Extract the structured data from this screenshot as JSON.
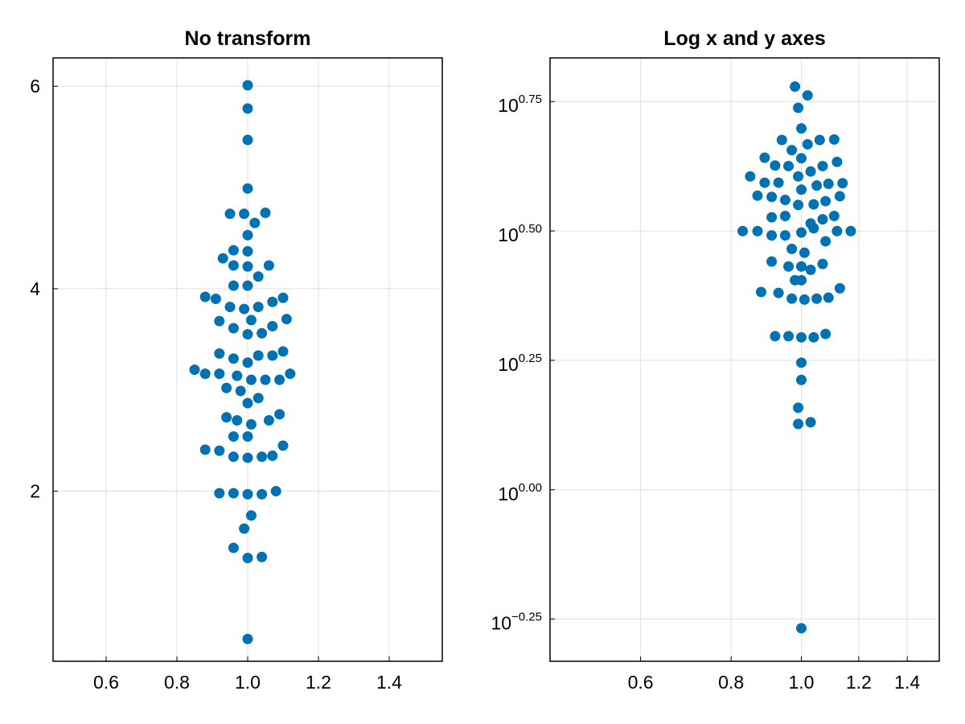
{
  "chart_data": [
    {
      "type": "scatter",
      "title": "No transform",
      "xlabel": "",
      "ylabel": "",
      "xlim": [
        0.45,
        1.55
      ],
      "ylim": [
        0.32,
        6.28
      ],
      "x_ticks": [
        "0.6",
        "0.8",
        "1.0",
        "1.2",
        "1.4"
      ],
      "y_ticks": [
        "2",
        "4",
        "6"
      ],
      "grid": true,
      "color": "#0072b2",
      "points": [
        [
          1.0,
          6.01
        ],
        [
          1.0,
          5.78
        ],
        [
          1.0,
          5.47
        ],
        [
          1.0,
          4.99
        ],
        [
          0.95,
          4.74
        ],
        [
          0.99,
          4.74
        ],
        [
          1.05,
          4.75
        ],
        [
          1.02,
          4.65
        ],
        [
          1.0,
          4.53
        ],
        [
          0.96,
          4.38
        ],
        [
          1.0,
          4.37
        ],
        [
          0.93,
          4.3
        ],
        [
          0.96,
          4.23
        ],
        [
          1.0,
          4.22
        ],
        [
          1.06,
          4.23
        ],
        [
          1.03,
          4.12
        ],
        [
          0.96,
          4.03
        ],
        [
          1.0,
          4.03
        ],
        [
          0.88,
          3.92
        ],
        [
          0.91,
          3.9
        ],
        [
          1.1,
          3.91
        ],
        [
          1.07,
          3.87
        ],
        [
          0.95,
          3.82
        ],
        [
          1.03,
          3.82
        ],
        [
          0.99,
          3.8
        ],
        [
          0.92,
          3.68
        ],
        [
          1.01,
          3.69
        ],
        [
          1.11,
          3.7
        ],
        [
          1.07,
          3.63
        ],
        [
          0.96,
          3.61
        ],
        [
          1.04,
          3.56
        ],
        [
          1.0,
          3.55
        ],
        [
          0.92,
          3.36
        ],
        [
          1.1,
          3.38
        ],
        [
          0.96,
          3.31
        ],
        [
          1.03,
          3.34
        ],
        [
          1.07,
          3.34
        ],
        [
          1.0,
          3.27
        ],
        [
          0.85,
          3.2
        ],
        [
          0.88,
          3.16
        ],
        [
          0.92,
          3.16
        ],
        [
          0.97,
          3.14
        ],
        [
          1.12,
          3.16
        ],
        [
          1.01,
          3.1
        ],
        [
          1.05,
          3.1
        ],
        [
          1.09,
          3.1
        ],
        [
          0.94,
          3.02
        ],
        [
          0.98,
          2.99
        ],
        [
          1.03,
          2.92
        ],
        [
          1.0,
          2.87
        ],
        [
          0.94,
          2.73
        ],
        [
          1.09,
          2.76
        ],
        [
          0.97,
          2.7
        ],
        [
          1.06,
          2.7
        ],
        [
          1.01,
          2.66
        ],
        [
          0.96,
          2.54
        ],
        [
          1.0,
          2.54
        ],
        [
          0.88,
          2.41
        ],
        [
          0.92,
          2.4
        ],
        [
          1.1,
          2.45
        ],
        [
          0.96,
          2.34
        ],
        [
          1.0,
          2.33
        ],
        [
          1.04,
          2.34
        ],
        [
          1.07,
          2.35
        ],
        [
          0.92,
          1.98
        ],
        [
          0.96,
          1.98
        ],
        [
          1.0,
          1.97
        ],
        [
          1.04,
          1.97
        ],
        [
          1.08,
          2.0
        ],
        [
          1.01,
          1.76
        ],
        [
          0.99,
          1.63
        ],
        [
          0.96,
          1.44
        ],
        [
          1.0,
          1.34
        ],
        [
          1.04,
          1.35
        ],
        [
          1.0,
          0.54
        ]
      ]
    },
    {
      "type": "scatter",
      "title": "Log x and y axes",
      "xlabel": "",
      "ylabel": "",
      "xscale": "log",
      "yscale": "log",
      "xlim": [
        0.45,
        1.55
      ],
      "ylim_log10": [
        -0.3314,
        0.8343
      ],
      "x_ticks": [
        "0.6",
        "0.8",
        "1.0",
        "1.2",
        "1.4"
      ],
      "y_ticks": [
        {
          "base": "10",
          "exp": "0.75"
        },
        {
          "base": "10",
          "exp": "0.50"
        },
        {
          "base": "10",
          "exp": "0.25"
        },
        {
          "base": "10",
          "exp": "0.00"
        },
        {
          "base": "10",
          "exp": "−0.25"
        }
      ],
      "grid": true,
      "color": "#0072b2",
      "points": [
        [
          0.98,
          6.01
        ],
        [
          1.02,
          5.78
        ],
        [
          0.99,
          5.47
        ],
        [
          1.0,
          4.99
        ],
        [
          0.94,
          4.74
        ],
        [
          0.97,
          4.53
        ],
        [
          1.02,
          4.65
        ],
        [
          1.06,
          4.74
        ],
        [
          1.11,
          4.75
        ],
        [
          1.0,
          4.37
        ],
        [
          0.89,
          4.38
        ],
        [
          0.92,
          4.23
        ],
        [
          0.96,
          4.22
        ],
        [
          1.03,
          4.12
        ],
        [
          1.07,
          4.22
        ],
        [
          1.12,
          4.3
        ],
        [
          0.85,
          4.03
        ],
        [
          0.89,
          3.92
        ],
        [
          0.93,
          3.92
        ],
        [
          0.99,
          4.03
        ],
        [
          1.05,
          3.87
        ],
        [
          1.09,
          3.9
        ],
        [
          1.14,
          3.91
        ],
        [
          0.87,
          3.7
        ],
        [
          0.91,
          3.68
        ],
        [
          0.95,
          3.63
        ],
        [
          1.0,
          3.8
        ],
        [
          1.04,
          3.56
        ],
        [
          1.08,
          3.61
        ],
        [
          1.13,
          3.69
        ],
        [
          0.91,
          3.36
        ],
        [
          0.95,
          3.38
        ],
        [
          0.99,
          3.55
        ],
        [
          1.03,
          3.27
        ],
        [
          1.07,
          3.33
        ],
        [
          1.11,
          3.38
        ],
        [
          0.83,
          3.16
        ],
        [
          0.87,
          3.16
        ],
        [
          0.91,
          3.1
        ],
        [
          0.95,
          3.1
        ],
        [
          1.0,
          3.14
        ],
        [
          1.04,
          3.2
        ],
        [
          1.12,
          3.16
        ],
        [
          1.17,
          3.16
        ],
        [
          0.97,
          2.92
        ],
        [
          1.01,
          2.87
        ],
        [
          1.08,
          3.02
        ],
        [
          0.91,
          2.76
        ],
        [
          0.96,
          2.7
        ],
        [
          1.0,
          2.7
        ],
        [
          1.03,
          2.66
        ],
        [
          1.07,
          2.73
        ],
        [
          0.98,
          2.54
        ],
        [
          1.0,
          2.54
        ],
        [
          0.88,
          2.41
        ],
        [
          0.93,
          2.4
        ],
        [
          1.13,
          2.45
        ],
        [
          0.97,
          2.34
        ],
        [
          1.01,
          2.33
        ],
        [
          1.05,
          2.34
        ],
        [
          1.09,
          2.35
        ],
        [
          0.92,
          1.98
        ],
        [
          0.96,
          1.98
        ],
        [
          1.0,
          1.97
        ],
        [
          1.04,
          1.97
        ],
        [
          1.08,
          2.0
        ],
        [
          1.0,
          1.76
        ],
        [
          1.0,
          1.63
        ],
        [
          0.99,
          1.44
        ],
        [
          0.99,
          1.34
        ],
        [
          1.03,
          1.35
        ],
        [
          1.0,
          0.54
        ]
      ]
    }
  ]
}
